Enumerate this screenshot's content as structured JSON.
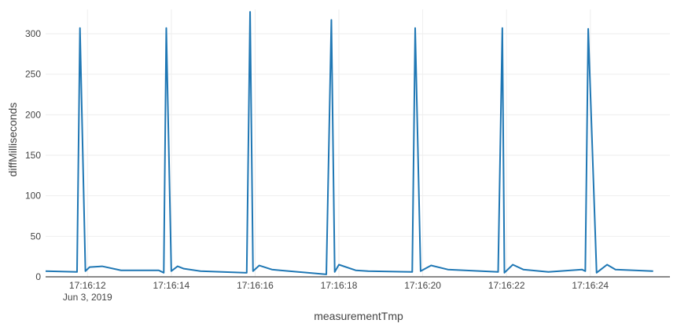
{
  "chart_data": {
    "type": "line",
    "xlabel": "measurementTmp",
    "ylabel": "diffMilliseconds",
    "xlim": [
      "2019-06-03 17:16:11.0",
      "2019-06-03 17:16:25.9"
    ],
    "ylim": [
      0,
      330
    ],
    "yticks": [
      0,
      50,
      100,
      150,
      200,
      250,
      300
    ],
    "xticks": [
      {
        "value": "2019-06-03 17:16:12",
        "label": "17:16:12",
        "sublabel": "Jun 3, 2019"
      },
      {
        "value": "2019-06-03 17:16:14",
        "label": "17:16:14"
      },
      {
        "value": "2019-06-03 17:16:16",
        "label": "17:16:16"
      },
      {
        "value": "2019-06-03 17:16:18",
        "label": "17:16:18"
      },
      {
        "value": "2019-06-03 17:16:20",
        "label": "17:16:20"
      },
      {
        "value": "2019-06-03 17:16:22",
        "label": "17:16:22"
      },
      {
        "value": "2019-06-03 17:16:24",
        "label": "17:16:24"
      }
    ],
    "grid": true,
    "color": "#1f77b4",
    "series": [
      {
        "x": [
          "2019-06-03 17:16:11.00",
          "2019-06-03 17:16:11.75",
          "2019-06-03 17:16:11.82",
          "2019-06-03 17:16:11.95",
          "2019-06-03 17:16:12.05",
          "2019-06-03 17:16:12.35",
          "2019-06-03 17:16:12.80",
          "2019-06-03 17:16:13.70",
          "2019-06-03 17:16:13.82",
          "2019-06-03 17:16:13.88",
          "2019-06-03 17:16:14.00",
          "2019-06-03 17:16:14.15",
          "2019-06-03 17:16:14.30",
          "2019-06-03 17:16:14.70",
          "2019-06-03 17:16:15.80",
          "2019-06-03 17:16:15.88",
          "2019-06-03 17:16:15.95",
          "2019-06-03 17:16:16.10",
          "2019-06-03 17:16:16.40",
          "2019-06-03 17:16:16.60",
          "2019-06-03 17:16:17.70",
          "2019-06-03 17:16:17.82",
          "2019-06-03 17:16:17.90",
          "2019-06-03 17:16:18.00",
          "2019-06-03 17:16:18.40",
          "2019-06-03 17:16:18.70",
          "2019-06-03 17:16:19.75",
          "2019-06-03 17:16:19.82",
          "2019-06-03 17:16:19.95",
          "2019-06-03 17:16:20.20",
          "2019-06-03 17:16:20.60",
          "2019-06-03 17:16:21.80",
          "2019-06-03 17:16:21.90",
          "2019-06-03 17:16:21.95",
          "2019-06-03 17:16:22.15",
          "2019-06-03 17:16:22.40",
          "2019-06-03 17:16:23.00",
          "2019-06-03 17:16:23.80",
          "2019-06-03 17:16:23.88",
          "2019-06-03 17:16:23.95",
          "2019-06-03 17:16:24.15",
          "2019-06-03 17:16:24.40",
          "2019-06-03 17:16:24.60",
          "2019-06-03 17:16:25.50"
        ],
        "y": [
          7,
          6,
          307,
          7,
          12,
          13,
          8,
          8,
          5,
          307,
          7,
          13,
          10,
          7,
          5,
          327,
          7,
          14,
          9,
          8,
          3,
          317,
          6,
          15,
          8,
          7,
          6,
          307,
          7,
          14,
          9,
          6,
          307,
          5,
          15,
          9,
          6,
          9,
          7,
          306,
          5,
          15,
          9,
          7
        ]
      }
    ]
  }
}
